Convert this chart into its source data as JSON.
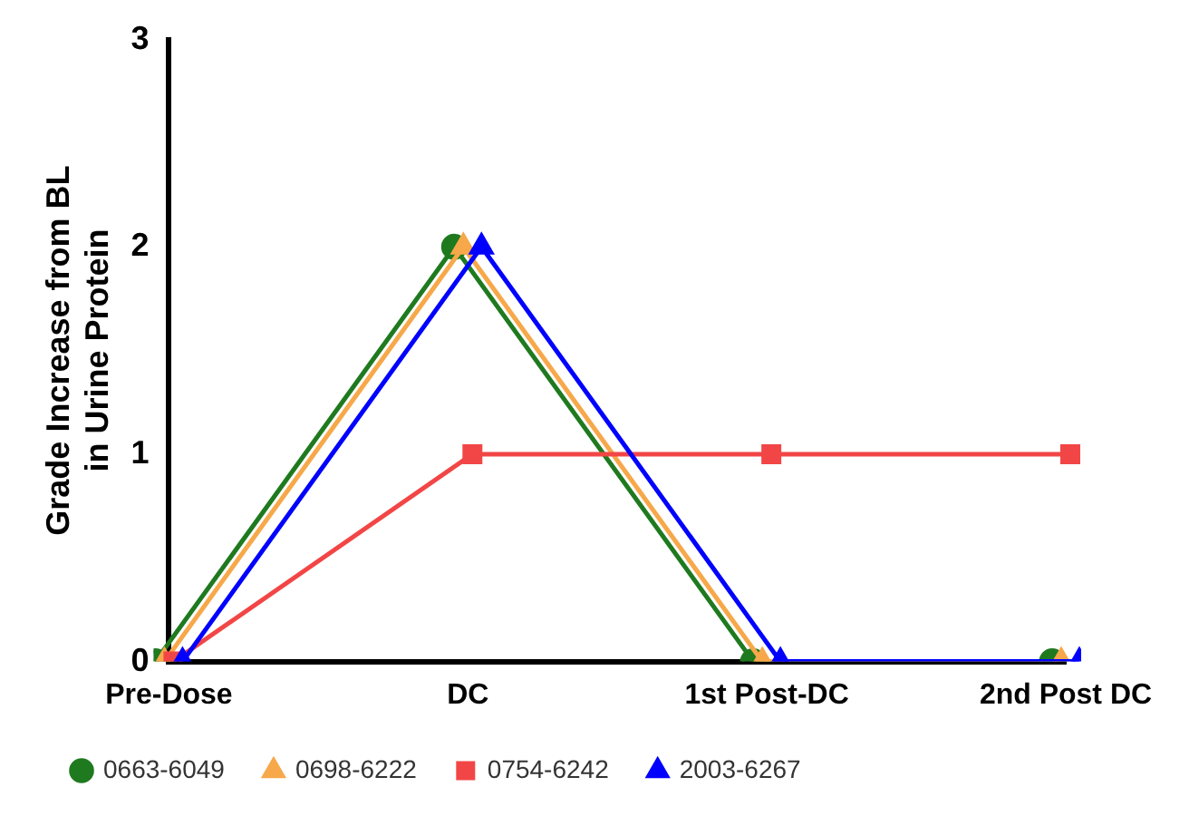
{
  "chart_data": {
    "type": "line",
    "ylabel": "Grade Increase from BL\nin Urine Protein",
    "categories": [
      "Pre-Dose",
      "DC",
      "1st Post-DC",
      "2nd Post DC"
    ],
    "series": [
      {
        "name": "0663-6049",
        "color": "#1f7a1f",
        "values": [
          0,
          2,
          0,
          0
        ],
        "marker": "circle"
      },
      {
        "name": "0698-6222",
        "color": "#f7a84a",
        "values": [
          0,
          2,
          0,
          0
        ],
        "marker": "triangle"
      },
      {
        "name": "0754-6242",
        "color": "#f24646",
        "values": [
          0,
          1,
          1,
          1
        ],
        "marker": "square"
      },
      {
        "name": "2003-6267",
        "color": "#0000ff",
        "values": [
          0,
          2,
          0,
          0
        ],
        "marker": "triangle"
      }
    ],
    "ylim": [
      0,
      3
    ],
    "yticks": [
      0,
      1,
      2,
      3
    ],
    "grid": false,
    "legend": "bottom"
  }
}
